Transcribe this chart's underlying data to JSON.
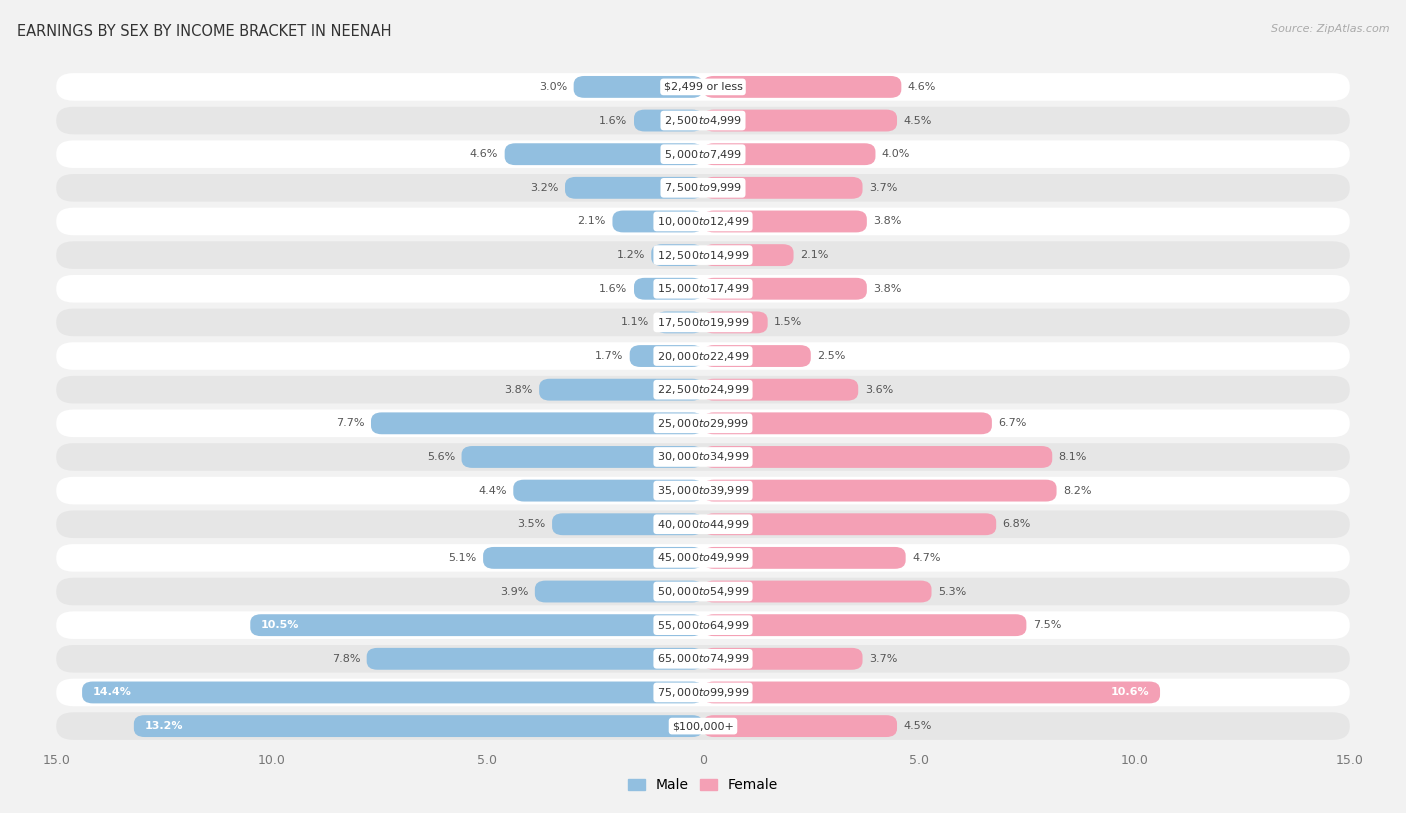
{
  "title": "EARNINGS BY SEX BY INCOME BRACKET IN NEENAH",
  "source": "Source: ZipAtlas.com",
  "male_color": "#92bfe0",
  "female_color": "#f4a0b5",
  "background_color": "#f2f2f2",
  "row_color_even": "#ffffff",
  "row_color_odd": "#e6e6e6",
  "categories": [
    "$2,499 or less",
    "$2,500 to $4,999",
    "$5,000 to $7,499",
    "$7,500 to $9,999",
    "$10,000 to $12,499",
    "$12,500 to $14,999",
    "$15,000 to $17,499",
    "$17,500 to $19,999",
    "$20,000 to $22,499",
    "$22,500 to $24,999",
    "$25,000 to $29,999",
    "$30,000 to $34,999",
    "$35,000 to $39,999",
    "$40,000 to $44,999",
    "$45,000 to $49,999",
    "$50,000 to $54,999",
    "$55,000 to $64,999",
    "$65,000 to $74,999",
    "$75,000 to $99,999",
    "$100,000+"
  ],
  "male_values": [
    3.0,
    1.6,
    4.6,
    3.2,
    2.1,
    1.2,
    1.6,
    1.1,
    1.7,
    3.8,
    7.7,
    5.6,
    4.4,
    3.5,
    5.1,
    3.9,
    10.5,
    7.8,
    14.4,
    13.2
  ],
  "female_values": [
    4.6,
    4.5,
    4.0,
    3.7,
    3.8,
    2.1,
    3.8,
    1.5,
    2.5,
    3.6,
    6.7,
    8.1,
    8.2,
    6.8,
    4.7,
    5.3,
    7.5,
    3.7,
    10.6,
    4.5
  ],
  "xlim": 15.0,
  "legend_male": "Male",
  "legend_female": "Female",
  "title_fontsize": 10.5,
  "label_fontsize": 8.0,
  "category_fontsize": 8.0,
  "tick_fontsize": 9.0,
  "bar_height": 0.65,
  "inside_label_threshold_male": 9.0,
  "inside_label_threshold_female": 9.0
}
